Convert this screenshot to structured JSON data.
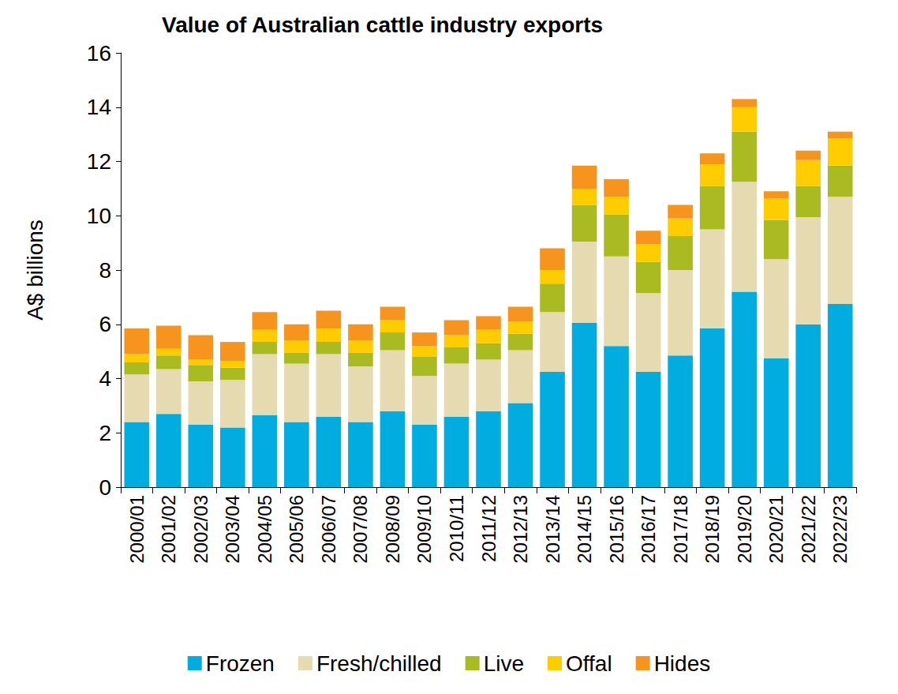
{
  "chart_data": {
    "type": "bar",
    "title": "Value of Australian cattle industry exports",
    "y_label": "A$ billions",
    "categories": [
      "2000/01",
      "2001/02",
      "2002/03",
      "2003/04",
      "2004/05",
      "2005/06",
      "2006/07",
      "2007/08",
      "2008/09",
      "2009/10",
      "2010/11",
      "2011/12",
      "2012/13",
      "2013/14",
      "2014/15",
      "2015/16",
      "2016/17",
      "2017/18",
      "2018/19",
      "2019/20",
      "2020/21",
      "2021/22",
      "2022/23"
    ],
    "series": [
      {
        "name": "Frozen",
        "color": "#00ACE0",
        "values": [
          2.4,
          2.7,
          2.3,
          2.2,
          2.65,
          2.4,
          2.6,
          2.4,
          2.8,
          2.3,
          2.6,
          2.8,
          3.1,
          4.25,
          6.05,
          5.2,
          4.25,
          4.85,
          5.85,
          7.2,
          4.75,
          6.0,
          6.75
        ]
      },
      {
        "name": "Fresh/chilled",
        "color": "#E6DAB0",
        "values": [
          1.75,
          1.65,
          1.6,
          1.75,
          2.25,
          2.15,
          2.3,
          2.05,
          2.25,
          1.8,
          1.95,
          1.9,
          1.95,
          2.2,
          3.0,
          3.3,
          2.9,
          3.15,
          3.65,
          4.05,
          3.65,
          3.95,
          3.95
        ]
      },
      {
        "name": "Live",
        "color": "#AABB22",
        "values": [
          0.45,
          0.5,
          0.6,
          0.45,
          0.45,
          0.4,
          0.45,
          0.5,
          0.65,
          0.7,
          0.6,
          0.6,
          0.6,
          1.05,
          1.35,
          1.55,
          1.15,
          1.25,
          1.6,
          1.85,
          1.45,
          1.15,
          1.15
        ]
      },
      {
        "name": "Offal",
        "color": "#FFCC00",
        "values": [
          0.3,
          0.25,
          0.2,
          0.25,
          0.45,
          0.45,
          0.5,
          0.45,
          0.45,
          0.4,
          0.45,
          0.5,
          0.45,
          0.5,
          0.6,
          0.65,
          0.65,
          0.65,
          0.8,
          0.9,
          0.8,
          0.95,
          1.0
        ]
      },
      {
        "name": "Hides",
        "color": "#F7941D",
        "values": [
          0.95,
          0.85,
          0.9,
          0.7,
          0.65,
          0.6,
          0.65,
          0.6,
          0.5,
          0.5,
          0.55,
          0.5,
          0.55,
          0.8,
          0.85,
          0.65,
          0.5,
          0.5,
          0.4,
          0.3,
          0.25,
          0.35,
          0.25
        ]
      }
    ],
    "ylim": [
      0,
      16
    ],
    "yticks": [
      0,
      2,
      4,
      6,
      8,
      10,
      12,
      14,
      16
    ],
    "stacked": true,
    "grid": false,
    "legend": "bottom"
  }
}
